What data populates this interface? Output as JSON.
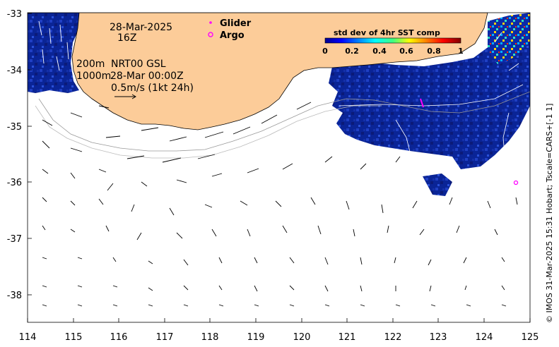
{
  "title": {
    "date": "28-Mar-2025",
    "hour": "16Z"
  },
  "legend": {
    "glider_label": "Glider",
    "argo_label": "Argo",
    "glider_color": "#ff00ff",
    "argo_color": "#ff00ff"
  },
  "info": {
    "depth1": "200m",
    "depth2": "1000m",
    "model": "NRT00 GSL",
    "model_time": "28-Mar 00:00Z",
    "scale": "0.5m/s (1kt 24h)"
  },
  "colorbar": {
    "title": "std dev of 4hr SST comp",
    "ticks": [
      "0",
      "0.2",
      "0.4",
      "0.6",
      "0.8",
      "1"
    ],
    "range": [
      0,
      1
    ]
  },
  "credit": "© IMOS 31-Mar-2025 15:31 Hobart; Tscale=CARS+[-1 1]",
  "axes": {
    "x_ticks": [
      "114",
      "115",
      "116",
      "117",
      "118",
      "119",
      "120",
      "121",
      "122",
      "123",
      "124",
      "125"
    ],
    "y_ticks": [
      "-33",
      "-34",
      "-35",
      "-36",
      "-37",
      "-38"
    ],
    "lon_range": [
      114,
      125
    ],
    "lat_range": [
      -38.5,
      -33
    ]
  },
  "colors": {
    "land": "#fccc99",
    "ocean_sst": "#08218f",
    "coast": "#000000"
  },
  "argo_floats": [
    {
      "lon": 124.7,
      "lat": -36.0
    }
  ],
  "glider_track": [
    {
      "lon": 122.6,
      "lat": -34.6
    },
    {
      "lon": 122.7,
      "lat": -34.75
    }
  ]
}
